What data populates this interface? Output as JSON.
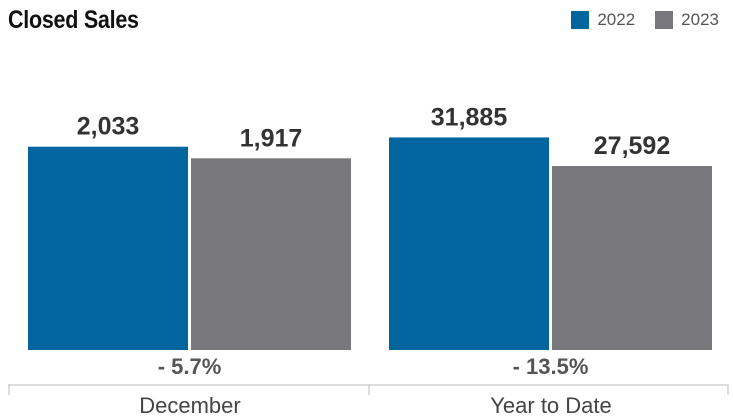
{
  "title": "Closed Sales",
  "legend": [
    {
      "label": "2022",
      "color": "#03659e"
    },
    {
      "label": "2023",
      "color": "#78777b"
    }
  ],
  "chart_data": {
    "type": "bar",
    "title": "Closed Sales",
    "categories": [
      "December",
      "Year to Date"
    ],
    "series": [
      {
        "name": "2022",
        "color": "#03659e",
        "values": [
          2033,
          31885
        ],
        "labels": [
          "2,033",
          "31,885"
        ]
      },
      {
        "name": "2023",
        "color": "#78777b",
        "values": [
          1917,
          27592
        ],
        "labels": [
          "1,917",
          "27,592"
        ]
      }
    ],
    "group_scales": [
      {
        "category": "December",
        "max": 2600
      },
      {
        "category": "Year to Date",
        "max": 39000
      }
    ],
    "changes": [
      "- 5.7%",
      "- 13.5%"
    ],
    "grid": false,
    "legend_position": "top-right"
  }
}
